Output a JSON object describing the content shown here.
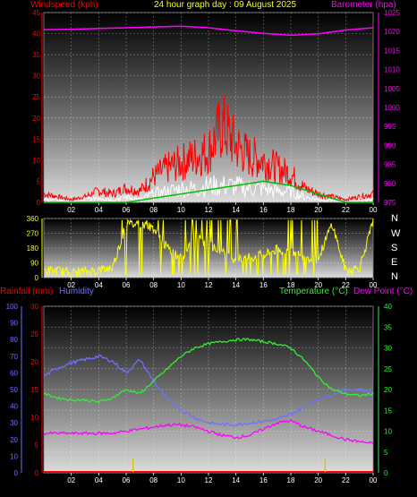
{
  "header": {
    "title": "24 hour graph day : 09 August 2025",
    "left_label": "Windspeed (kph)",
    "right_label": "Barometer (hpa)"
  },
  "bottom_header": {
    "rainfall_label": "Rainfall (mm)",
    "humidity_label": "Humidity",
    "temperature_label": "Temperature (°C)",
    "dewpoint_label": "Dew Point (°C)"
  },
  "compass": [
    "N",
    "W",
    "S",
    "E",
    "N"
  ],
  "colors": {
    "wind": "#ff0000",
    "gust": "#00c000",
    "wind_light": "#ffffff",
    "barometer": "#ff00ff",
    "direction": "#ffff00",
    "rain_axis": "#ff0000",
    "humidity": "#7070ff",
    "temperature": "#33ee33",
    "dewpoint": "#ff00ff"
  },
  "chart_data": [
    {
      "type": "line",
      "name": "wind-baro",
      "x_ticks": [
        "02",
        "04",
        "06",
        "08",
        "10",
        "12",
        "14",
        "16",
        "18",
        "20",
        "22",
        "00"
      ],
      "ylim_left": [
        0,
        45
      ],
      "ticks_left": [
        "0",
        "5",
        "10",
        "15",
        "20",
        "25",
        "30",
        "35",
        "40",
        "45"
      ],
      "ylim_right": [
        975,
        1025
      ],
      "ticks_right": [
        "975",
        "980",
        "985",
        "990",
        "995",
        "1000",
        "1005",
        "1010",
        "1015",
        "1020",
        "1025"
      ],
      "barometer": {
        "x": [
          0,
          2,
          4,
          6,
          8,
          10,
          12,
          14,
          16,
          18,
          20,
          22,
          24
        ],
        "values": [
          1020.5,
          1020.6,
          1020.8,
          1021.0,
          1021.2,
          1021.4,
          1021.0,
          1020.2,
          1019.5,
          1019.0,
          1019.4,
          1020.4,
          1021.0
        ]
      },
      "wind_avg": {
        "x": [
          0,
          1,
          2,
          3,
          4,
          5,
          6,
          7,
          8,
          9,
          10,
          11,
          12,
          13,
          14,
          15,
          16,
          17,
          18,
          19,
          20,
          21,
          22,
          23,
          24
        ],
        "values": [
          1,
          1,
          0,
          1,
          2,
          1,
          2,
          1,
          3,
          4,
          5,
          5,
          6,
          6,
          6,
          5,
          5,
          4,
          4,
          2,
          1,
          1,
          0,
          1,
          1
        ]
      },
      "wind_gust": {
        "x": [
          0,
          1,
          2,
          3,
          4,
          5,
          6,
          7,
          8,
          9,
          10,
          11,
          12,
          13,
          14,
          15,
          16,
          17,
          18,
          19,
          20,
          21,
          22,
          23,
          24
        ],
        "values": [
          3,
          2,
          1,
          2,
          4,
          3,
          5,
          4,
          9,
          12,
          14,
          16,
          18,
          27,
          20,
          16,
          15,
          12,
          10,
          5,
          3,
          2,
          1,
          2,
          3
        ]
      },
      "gust_line": {
        "x": [
          0,
          2,
          4,
          6,
          8,
          10,
          12,
          14,
          16,
          18,
          20,
          22,
          24
        ],
        "values": [
          0,
          0,
          0,
          0,
          1,
          2,
          3,
          4,
          5,
          4,
          2,
          0,
          0
        ]
      }
    },
    {
      "type": "line",
      "name": "wind-direction",
      "x_ticks": [
        "02",
        "04",
        "06",
        "08",
        "10",
        "12",
        "14",
        "16",
        "18",
        "20",
        "22",
        "00"
      ],
      "ylim": [
        0,
        360
      ],
      "ticks": [
        "0",
        "90",
        "180",
        "270",
        "360"
      ],
      "direction": {
        "x": [
          0,
          1,
          2,
          3,
          4,
          5,
          6,
          7,
          8,
          9,
          10,
          11,
          12,
          13,
          14,
          15,
          16,
          17,
          18,
          19,
          20,
          21,
          22,
          23,
          24
        ],
        "values": [
          45,
          40,
          30,
          35,
          45,
          60,
          320,
          330,
          300,
          180,
          120,
          250,
          200,
          150,
          110,
          120,
          140,
          170,
          160,
          130,
          110,
          330,
          40,
          60,
          340
        ]
      }
    },
    {
      "type": "line",
      "name": "rain-humidity-temperature",
      "x_ticks": [
        "02",
        "04",
        "06",
        "08",
        "10",
        "12",
        "14",
        "16",
        "18",
        "20",
        "22",
        "00"
      ],
      "ylim_rain": [
        0,
        30
      ],
      "ticks_rain": [
        "0",
        "5",
        "10",
        "15",
        "20",
        "25",
        "30"
      ],
      "ylim_humidity": [
        0,
        100
      ],
      "ticks_humidity": [
        "0",
        "10",
        "20",
        "30",
        "40",
        "50",
        "60",
        "70",
        "80",
        "90",
        "100"
      ],
      "ylim_temp": [
        0,
        40
      ],
      "ticks_temp": [
        "0",
        "5",
        "10",
        "15",
        "20",
        "25",
        "30",
        "35",
        "40"
      ],
      "humidity": {
        "x": [
          0,
          1,
          2,
          3,
          4,
          5,
          6,
          7,
          8,
          9,
          10,
          11,
          12,
          13,
          14,
          15,
          16,
          17,
          18,
          19,
          20,
          21,
          22,
          23,
          24
        ],
        "values": [
          58,
          63,
          66,
          68,
          70,
          67,
          60,
          68,
          55,
          44,
          38,
          33,
          30,
          29,
          29,
          30,
          31,
          32,
          35,
          40,
          44,
          47,
          50,
          50,
          48
        ]
      },
      "temperature": {
        "x": [
          0,
          1,
          2,
          3,
          4,
          5,
          6,
          7,
          8,
          9,
          10,
          11,
          12,
          13,
          14,
          15,
          16,
          17,
          18,
          19,
          20,
          21,
          22,
          23,
          24
        ],
        "values": [
          19,
          18,
          17.5,
          17.5,
          17,
          18,
          20,
          19,
          22,
          25,
          28,
          30,
          31,
          31.5,
          32,
          32,
          31.5,
          31,
          30,
          27,
          23,
          20,
          19,
          18.5,
          19
        ]
      },
      "dewpoint": {
        "x": [
          0,
          1,
          2,
          3,
          4,
          5,
          6,
          7,
          8,
          9,
          10,
          11,
          12,
          13,
          14,
          15,
          16,
          17,
          18,
          19,
          20,
          21,
          22,
          23,
          24
        ],
        "values": [
          9.5,
          9.5,
          9.5,
          9.5,
          9.5,
          9.5,
          10,
          10.5,
          11,
          11.5,
          11.5,
          11,
          10,
          9,
          8.5,
          9,
          10.5,
          12,
          12.5,
          11,
          10,
          9,
          8,
          7.5,
          7
        ]
      },
      "rain": {
        "x": [
          6.5,
          20.5
        ],
        "values": [
          0.3,
          0.3
        ]
      }
    }
  ]
}
